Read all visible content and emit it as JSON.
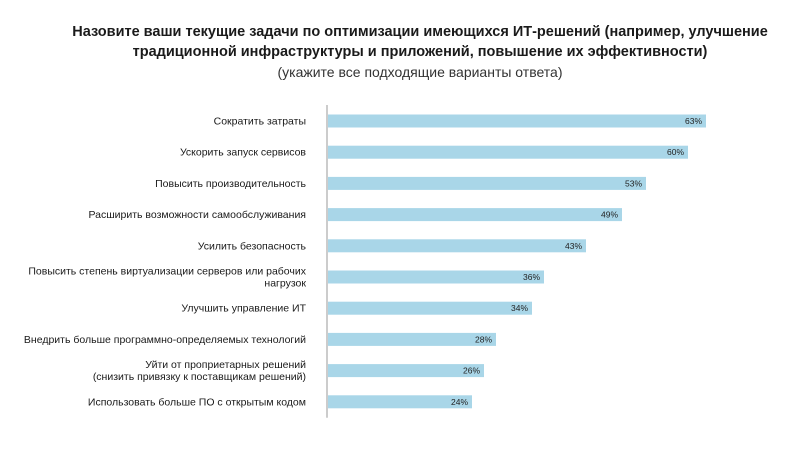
{
  "chart_data": {
    "type": "bar",
    "orientation": "horizontal",
    "title_lines": [
      "Назовите ваши текущие задачи по оптимизации имеющихся ИТ-решений (например, улучшение",
      "традиционной инфраструктуры и приложений, повышение их эффективности)"
    ],
    "subtitle": "(укажите все подходящие варианты ответа)",
    "categories": [
      [
        "Сократить затраты"
      ],
      [
        "Ускорить запуск сервисов"
      ],
      [
        "Повысить производительность"
      ],
      [
        "Расширить возможности самообслуживания"
      ],
      [
        "Усилить безопасность"
      ],
      [
        "Повысить степень виртуализации серверов или рабочих",
        "нагрузок"
      ],
      [
        "Улучшить управление ИТ"
      ],
      [
        "Внедрить больше программно-определяемых технологий"
      ],
      [
        "Уйти от проприетарных решений",
        "(снизить привязку к поставщикам решений)"
      ],
      [
        "Использовать больше ПО с открытым кодом"
      ]
    ],
    "values": [
      63,
      60,
      53,
      49,
      43,
      36,
      34,
      28,
      26,
      24
    ],
    "value_labels": [
      "63%",
      "60%",
      "53%",
      "49%",
      "43%",
      "36%",
      "34%",
      "28%",
      "26%",
      "24%"
    ],
    "unit": "%",
    "bar_color": "#a9d6e8",
    "xlim": [
      0,
      100
    ],
    "grid": false,
    "axis_line": true
  }
}
